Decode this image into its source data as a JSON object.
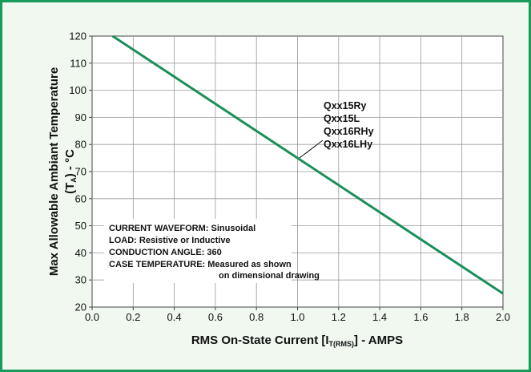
{
  "chart_data": {
    "type": "line",
    "title": "",
    "xlabel": "RMS On-State Current [I",
    "xlabel_sub": "T(RMS)",
    "xlabel_tail": "] - AMPS",
    "ylabel_line1": "Max Allowable Ambiant Temperature",
    "ylabel_line2_pre": "(T",
    "ylabel_line2_sub": "A",
    "ylabel_line2_post": ") - °C",
    "xlim": [
      0.0,
      2.0
    ],
    "ylim": [
      20,
      120
    ],
    "x_ticks": [
      "0.0",
      "0.2",
      "0.4",
      "0.6",
      "0.8",
      "1.0",
      "1.2",
      "1.4",
      "1.6",
      "1.8",
      "2.0"
    ],
    "y_ticks": [
      "20",
      "30",
      "40",
      "50",
      "60",
      "70",
      "80",
      "90",
      "100",
      "110",
      "120"
    ],
    "grid": true,
    "series": [
      {
        "name": "Qxx15Ry",
        "x": [
          0.1,
          2.0
        ],
        "y": [
          120,
          25
        ],
        "color": "#1a8f5a"
      }
    ],
    "series_labels": [
      "Qxx15Ry",
      "Qxx15L",
      "Qxx16RHy",
      "Qxx16LHy"
    ],
    "annotations": [
      "CURRENT WAVEFORM:  Sinusoidal",
      "LOAD:  Resistive or Inductive",
      "CONDUCTION ANGLE:  360",
      "CASE TEMPERATURE:  Measured as shown",
      "on dimensional drawing"
    ]
  }
}
